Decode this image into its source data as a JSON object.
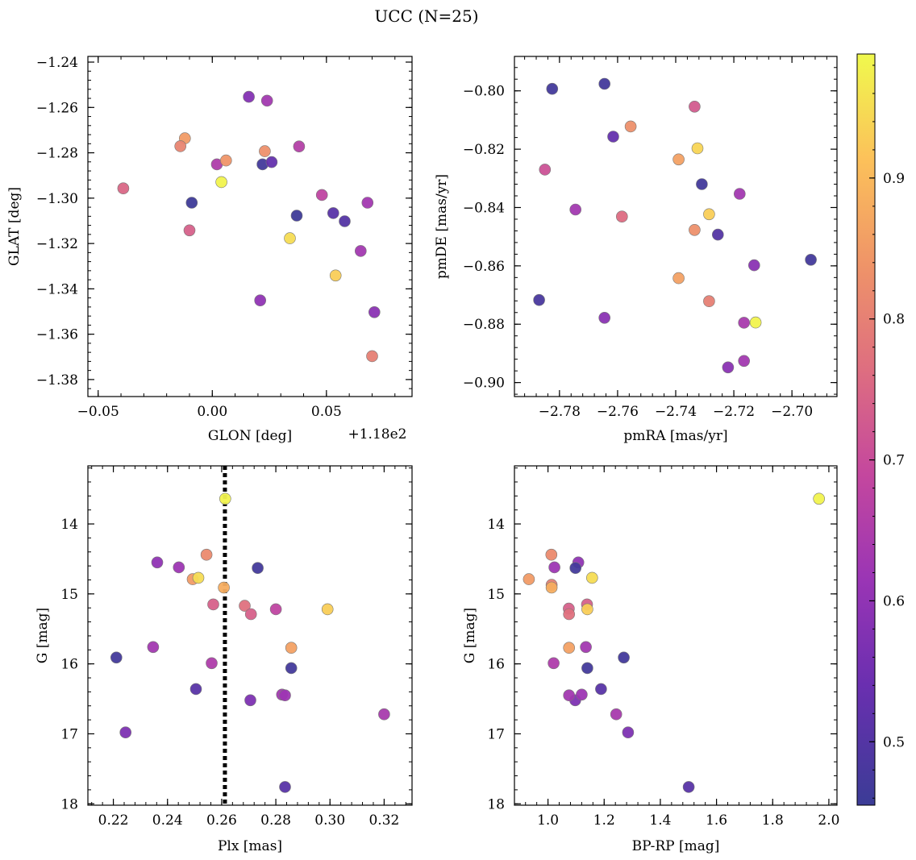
{
  "figure": {
    "title": "UCC (N=25)"
  },
  "colorbar": {
    "vmin": 0.455,
    "vmax": 0.988,
    "ticks": [
      0.5,
      0.6,
      0.7,
      0.8,
      0.9
    ],
    "tick_labels": [
      "0.5",
      "0.6",
      "0.7",
      "0.8",
      "0.9"
    ],
    "colormap": "plasma"
  },
  "chart_data": [
    {
      "type": "scatter",
      "panel": "glon-glat",
      "xlabel": "GLON [deg]",
      "ylabel": "GLAT [deg]",
      "x_offset_label": "+1.18e2",
      "xlim": [
        -0.0545,
        0.0875
      ],
      "ylim": [
        -1.3875,
        -1.2375
      ],
      "y_inverted": false,
      "xticks": [
        -0.05,
        0.0,
        0.05
      ],
      "xtick_labels": [
        "−0.05",
        "0.00",
        "0.05"
      ],
      "yticks": [
        -1.38,
        -1.36,
        -1.34,
        -1.32,
        -1.3,
        -1.28,
        -1.26,
        -1.24
      ],
      "ytick_labels": [
        "−1.38",
        "−1.36",
        "−1.34",
        "−1.32",
        "−1.30",
        "−1.28",
        "−1.26",
        "−1.24"
      ],
      "vline": null,
      "x": [
        0.016,
        0.024,
        -0.012,
        -0.014,
        0.023,
        0.038,
        0.002,
        0.006,
        0.022,
        0.026,
        0.004,
        -0.039,
        -0.009,
        0.048,
        0.068,
        0.037,
        0.053,
        0.058,
        -0.01,
        0.034,
        0.065,
        0.054,
        0.021,
        0.071,
        0.07
      ],
      "y": [
        -1.2553,
        -1.257,
        -1.2736,
        -1.2771,
        -1.2793,
        -1.2772,
        -1.2851,
        -1.2834,
        -1.2851,
        -1.2841,
        -1.2929,
        -1.2957,
        -1.302,
        -1.2986,
        -1.302,
        -1.3077,
        -1.3066,
        -1.3102,
        -1.3142,
        -1.3177,
        -1.3233,
        -1.3341,
        -1.3451,
        -1.3503,
        -1.3697
      ],
      "c": [
        0.58,
        0.63,
        0.85,
        0.81,
        0.83,
        0.66,
        0.65,
        0.84,
        0.47,
        0.53,
        0.98,
        0.75,
        0.46,
        0.68,
        0.63,
        0.46,
        0.51,
        0.5,
        0.74,
        0.95,
        0.63,
        0.93,
        0.6,
        0.59,
        0.8
      ]
    },
    {
      "type": "scatter",
      "panel": "pmra-pmde",
      "xlabel": "pmRA [mas/yr]",
      "ylabel": "pmDE [mas/yr]",
      "xlim": [
        -2.7955,
        -2.6845
      ],
      "ylim": [
        -0.9048,
        -0.7882
      ],
      "y_inverted": false,
      "xticks": [
        -2.78,
        -2.76,
        -2.74,
        -2.72,
        -2.7
      ],
      "xtick_labels": [
        "−2.78",
        "−2.76",
        "−2.74",
        "−2.72",
        "−2.70"
      ],
      "yticks": [
        -0.9,
        -0.88,
        -0.86,
        -0.84,
        -0.82,
        -0.8
      ],
      "ytick_labels": [
        "−0.90",
        "−0.88",
        "−0.86",
        "−0.84",
        "−0.82",
        "−0.80"
      ],
      "vline": null,
      "x": [
        -2.7825,
        -2.7645,
        -2.7335,
        -2.7555,
        -2.7615,
        -2.785,
        -2.739,
        -2.7325,
        -2.731,
        -2.718,
        -2.7285,
        -2.7745,
        -2.7585,
        -2.7335,
        -2.7255,
        -2.713,
        -2.6935,
        -2.739,
        -2.7285,
        -2.787,
        -2.7645,
        -2.7165,
        -2.7125,
        -2.722,
        -2.7165
      ],
      "y": [
        -0.7993,
        -0.7976,
        -0.8054,
        -0.8122,
        -0.8157,
        -0.827,
        -0.8235,
        -0.8197,
        -0.832,
        -0.8353,
        -0.8423,
        -0.8407,
        -0.8431,
        -0.8477,
        -0.8493,
        -0.8598,
        -0.8579,
        -0.8642,
        -0.8721,
        -0.8717,
        -0.8778,
        -0.8795,
        -0.8794,
        -0.8948,
        -0.8926
      ],
      "c": [
        0.47,
        0.47,
        0.73,
        0.83,
        0.53,
        0.71,
        0.86,
        0.94,
        0.47,
        0.63,
        0.93,
        0.63,
        0.76,
        0.83,
        0.5,
        0.59,
        0.47,
        0.86,
        0.8,
        0.48,
        0.59,
        0.64,
        0.98,
        0.59,
        0.63
      ]
    },
    {
      "type": "scatter",
      "panel": "plx-g",
      "xlabel": "Plx [mas]",
      "ylabel": "G [mag]",
      "xlim": [
        0.2106,
        0.3303
      ],
      "ylim": [
        18.02,
        13.17
      ],
      "y_inverted": true,
      "xticks": [
        0.22,
        0.24,
        0.26,
        0.28,
        0.3,
        0.32
      ],
      "xtick_labels": [
        "0.22",
        "0.24",
        "0.26",
        "0.28",
        "0.30",
        "0.32"
      ],
      "yticks": [
        14,
        15,
        16,
        17,
        18
      ],
      "ytick_labels": [
        "14",
        "15",
        "16",
        "17",
        "18"
      ],
      "vline": 0.2612,
      "x": [
        0.2613,
        0.2362,
        0.2544,
        0.2442,
        0.2493,
        0.2514,
        0.2733,
        0.2608,
        0.2569,
        0.2685,
        0.2708,
        0.28,
        0.2991,
        0.2347,
        0.2857,
        0.2211,
        0.2563,
        0.2857,
        0.2505,
        0.2706,
        0.2823,
        0.2834,
        0.32,
        0.2245,
        0.2834
      ],
      "y": [
        13.64,
        14.55,
        14.44,
        14.62,
        14.79,
        14.77,
        14.63,
        14.91,
        15.15,
        15.17,
        15.29,
        15.22,
        15.22,
        15.76,
        15.77,
        15.91,
        15.99,
        16.06,
        16.36,
        16.52,
        16.44,
        16.45,
        16.72,
        16.98,
        17.76
      ],
      "c": [
        0.98,
        0.6,
        0.82,
        0.62,
        0.85,
        0.95,
        0.47,
        0.88,
        0.74,
        0.77,
        0.74,
        0.68,
        0.93,
        0.63,
        0.86,
        0.47,
        0.65,
        0.47,
        0.51,
        0.57,
        0.63,
        0.62,
        0.64,
        0.57,
        0.51
      ]
    },
    {
      "type": "scatter",
      "panel": "bprp-g",
      "xlabel": "BP-RP [mag]",
      "ylabel": "G [mag]",
      "xlim": [
        0.8806,
        2.0289
      ],
      "ylim": [
        18.02,
        13.17
      ],
      "y_inverted": true,
      "xticks": [
        1.0,
        1.2,
        1.4,
        1.6,
        1.8,
        2.0
      ],
      "xtick_labels": [
        "1.0",
        "1.2",
        "1.4",
        "1.6",
        "1.8",
        "2.0"
      ],
      "yticks": [
        14,
        15,
        16,
        17,
        18
      ],
      "ytick_labels": [
        "14",
        "15",
        "16",
        "17",
        "18"
      ],
      "vline": null,
      "x": [
        1.965,
        1.012,
        1.108,
        1.023,
        1.098,
        0.932,
        1.157,
        1.013,
        1.139,
        1.074,
        1.075,
        1.14,
        1.013,
        1.135,
        1.075,
        1.27,
        1.02,
        1.14,
        1.189,
        1.097,
        1.075,
        1.12,
        1.243,
        1.285,
        1.501
      ],
      "y": [
        13.64,
        14.44,
        14.55,
        14.62,
        14.63,
        14.79,
        14.77,
        14.87,
        15.15,
        15.21,
        15.29,
        15.22,
        14.91,
        15.76,
        15.77,
        15.91,
        15.99,
        16.06,
        16.36,
        16.52,
        16.45,
        16.44,
        16.72,
        16.98,
        17.76
      ],
      "c": [
        0.98,
        0.82,
        0.6,
        0.62,
        0.47,
        0.85,
        0.95,
        0.8,
        0.74,
        0.74,
        0.77,
        0.93,
        0.88,
        0.63,
        0.86,
        0.47,
        0.65,
        0.47,
        0.51,
        0.57,
        0.63,
        0.62,
        0.64,
        0.57,
        0.51
      ]
    }
  ]
}
